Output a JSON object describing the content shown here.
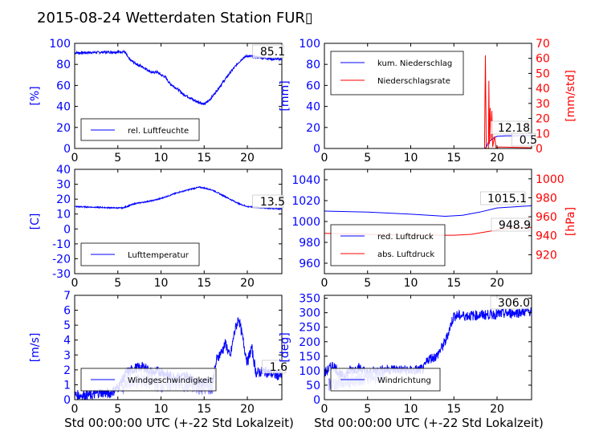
{
  "figure": {
    "title": "2015-08-24 Wetterdaten Station FUR▯",
    "xlabel": "Std 00:00:00 UTC (+-22 Std Lokalzeit)",
    "colors": {
      "left_axis": "#0000ff",
      "right_axis": "#ff0000",
      "light_blue": "#8080ff",
      "text": "#000000"
    }
  },
  "chart_data": [
    {
      "id": "humidity",
      "type": "line",
      "ylabel": "[%]",
      "xlim": [
        0,
        24
      ],
      "ylim": [
        0,
        100
      ],
      "xticks": [
        0,
        5,
        10,
        15,
        20
      ],
      "yticks": [
        0,
        20,
        40,
        60,
        80,
        100
      ],
      "last_value_label": "85.1",
      "legend": [
        "rel. Luftfeuchte"
      ],
      "series": [
        {
          "name": "rel. Luftfeuchte",
          "color": "#0000ff",
          "noise": 1.2,
          "points": [
            [
              0,
              91
            ],
            [
              3,
              91.5
            ],
            [
              5.8,
              92
            ],
            [
              6.3,
              85
            ],
            [
              7,
              81
            ],
            [
              8,
              77
            ],
            [
              9,
              72
            ],
            [
              9.5,
              73
            ],
            [
              10,
              70
            ],
            [
              10.5,
              68
            ],
            [
              11,
              62
            ],
            [
              12,
              56
            ],
            [
              12.5,
              52
            ],
            [
              13,
              50
            ],
            [
              14,
              45
            ],
            [
              14.5,
              44
            ],
            [
              15,
              42
            ],
            [
              15.5,
              45
            ],
            [
              16,
              50
            ],
            [
              17,
              61
            ],
            [
              18,
              72
            ],
            [
              19,
              82
            ],
            [
              19.5,
              86
            ],
            [
              20,
              88
            ],
            [
              21,
              87
            ],
            [
              22,
              86
            ],
            [
              23,
              85
            ],
            [
              24,
              85
            ]
          ]
        }
      ]
    },
    {
      "id": "precipitation",
      "type": "line",
      "ylabel": "[mm]",
      "ylabel_right": "[mm/std]",
      "xlim": [
        0,
        24
      ],
      "ylim": [
        0,
        100
      ],
      "ylim_right": [
        0,
        70
      ],
      "xticks": [
        0,
        5,
        10,
        15,
        20
      ],
      "yticks": [
        0,
        20,
        40,
        60,
        80,
        100
      ],
      "yticks_right": [
        0,
        10,
        20,
        30,
        40,
        50,
        60,
        70
      ],
      "last_value_labels": [
        "12.18",
        "0.5"
      ],
      "legend": [
        "kum. Niederschlag",
        "Niederschlagsrate"
      ],
      "series": [
        {
          "name": "kum. Niederschlag",
          "color": "#0000ff",
          "axis": "left",
          "points": [
            [
              0,
              0
            ],
            [
              18.6,
              0
            ],
            [
              18.8,
              2
            ],
            [
              19,
              6
            ],
            [
              19.3,
              8
            ],
            [
              19.6,
              10
            ],
            [
              20,
              11.5
            ],
            [
              21,
              12
            ],
            [
              24,
              12.18
            ]
          ]
        },
        {
          "name": "Niederschlagsrate",
          "color": "#ff0000",
          "axis": "right",
          "points": [
            [
              0,
              0
            ],
            [
              18.55,
              0
            ],
            [
              18.65,
              62
            ],
            [
              18.75,
              0
            ],
            [
              19,
              0
            ],
            [
              19.05,
              45
            ],
            [
              19.12,
              3
            ],
            [
              19.2,
              27
            ],
            [
              19.3,
              5
            ],
            [
              19.4,
              25
            ],
            [
              19.5,
              1
            ],
            [
              19.7,
              8
            ],
            [
              19.9,
              0
            ],
            [
              20.2,
              1
            ],
            [
              24,
              0.5
            ]
          ]
        }
      ]
    },
    {
      "id": "temperature",
      "type": "line",
      "ylabel": "[C]",
      "xlim": [
        0,
        24
      ],
      "ylim": [
        -30,
        40
      ],
      "xticks": [
        0,
        5,
        10,
        15,
        20
      ],
      "yticks": [
        -30,
        -20,
        -10,
        0,
        10,
        20,
        30,
        40
      ],
      "last_value_label": "13.5",
      "legend": [
        "Lufttemperatur"
      ],
      "series": [
        {
          "name": "Lufttemperatur",
          "color": "#0000ff",
          "noise": 0.4,
          "points": [
            [
              0,
              15
            ],
            [
              5.5,
              14
            ],
            [
              6,
              15
            ],
            [
              7,
              17
            ],
            [
              8,
              18
            ],
            [
              9,
              19
            ],
            [
              10,
              20.5
            ],
            [
              11,
              22.5
            ],
            [
              12,
              24.5
            ],
            [
              13,
              26
            ],
            [
              14,
              27.5
            ],
            [
              14.5,
              28
            ],
            [
              15,
              27.5
            ],
            [
              16,
              26
            ],
            [
              17,
              23
            ],
            [
              18,
              20
            ],
            [
              19,
              17
            ],
            [
              20,
              15
            ],
            [
              22,
              14
            ],
            [
              24,
              13.5
            ]
          ]
        }
      ]
    },
    {
      "id": "pressure",
      "type": "line",
      "ylim": [
        950,
        1050
      ],
      "ylim_right": [
        900,
        1010
      ],
      "ylabel_right": "[hPa]",
      "xlim": [
        0,
        24
      ],
      "xticks": [
        0,
        5,
        10,
        15,
        20
      ],
      "yticks": [
        960,
        980,
        1000,
        1020,
        1040
      ],
      "yticks_right": [
        920,
        940,
        960,
        980,
        1000
      ],
      "last_value_labels": [
        "1015.1",
        "948.9"
      ],
      "legend": [
        "red. Luftdruck",
        "abs. Luftdruck"
      ],
      "series": [
        {
          "name": "red. Luftdruck",
          "color": "#0000ff",
          "axis": "left",
          "points": [
            [
              0,
              1010
            ],
            [
              5,
              1009
            ],
            [
              10,
              1007
            ],
            [
              14,
              1005
            ],
            [
              16,
              1006
            ],
            [
              18,
              1009
            ],
            [
              20,
              1013
            ],
            [
              24,
              1015.1
            ]
          ]
        },
        {
          "name": "abs. Luftdruck",
          "color": "#ff0000",
          "axis": "right",
          "points": [
            [
              0,
              942.5
            ],
            [
              5,
              941.5
            ],
            [
              10,
              940.5
            ],
            [
              15,
              940.5
            ],
            [
              17,
              941.5
            ],
            [
              19,
              944.5
            ],
            [
              21,
              947.5
            ],
            [
              24,
              948.9
            ]
          ]
        }
      ]
    },
    {
      "id": "windspeed",
      "type": "line",
      "ylabel": "[m/s]",
      "xlim": [
        0,
        24
      ],
      "ylim": [
        0,
        7
      ],
      "xticks": [
        0,
        5,
        10,
        15,
        20
      ],
      "yticks": [
        0,
        1,
        2,
        3,
        4,
        5,
        6,
        7
      ],
      "last_value_label": "1.6",
      "legend": [
        "Windgeschwindigkeit"
      ],
      "series": [
        {
          "name": "Windgeschwindigkeit",
          "color": "#0000ff",
          "noise": 0.35,
          "points": [
            [
              0,
              0.3
            ],
            [
              2,
              0.3
            ],
            [
              3,
              0.5
            ],
            [
              4,
              0.4
            ],
            [
              5,
              0.8
            ],
            [
              6,
              1.8
            ],
            [
              7,
              2.1
            ],
            [
              8,
              2.2
            ],
            [
              9,
              1.8
            ],
            [
              10,
              1.9
            ],
            [
              11,
              1.6
            ],
            [
              12,
              1.5
            ],
            [
              13,
              1.6
            ],
            [
              14,
              1.2
            ],
            [
              15,
              1.1
            ],
            [
              16,
              1.3
            ],
            [
              16.5,
              2.8
            ],
            [
              17,
              3.2
            ],
            [
              17.5,
              3.8
            ],
            [
              18,
              2.8
            ],
            [
              18.5,
              4.5
            ],
            [
              19,
              5.5
            ],
            [
              19.5,
              4.0
            ],
            [
              20,
              2.5
            ],
            [
              20.5,
              3.5
            ],
            [
              21,
              1.8
            ],
            [
              22,
              1.9
            ],
            [
              23,
              1.7
            ],
            [
              24,
              1.6
            ]
          ]
        },
        {
          "name": "",
          "color": "#8080ff",
          "noise": 0.55,
          "points": [
            [
              5.5,
              0.5
            ],
            [
              6,
              1.2
            ],
            [
              8,
              1.3
            ],
            [
              10,
              1.0
            ],
            [
              12,
              1.1
            ],
            [
              14,
              0.9
            ],
            [
              16,
              0.8
            ]
          ]
        }
      ]
    },
    {
      "id": "winddirection",
      "type": "line",
      "ylabel": "[deg]",
      "xlim": [
        0,
        24
      ],
      "ylim": [
        0,
        360
      ],
      "xticks": [
        0,
        5,
        10,
        15,
        20
      ],
      "yticks": [
        0,
        50,
        100,
        150,
        200,
        250,
        300,
        350
      ],
      "last_value_label": "306.0",
      "legend": [
        "Windrichtung"
      ],
      "series": [
        {
          "name": "Windrichtung",
          "color": "#0000ff",
          "noise": 18,
          "points": [
            [
              0,
              90
            ],
            [
              1,
              120
            ],
            [
              2,
              80
            ],
            [
              3,
              100
            ],
            [
              4,
              110
            ],
            [
              5,
              90
            ],
            [
              6,
              100
            ],
            [
              8,
              105
            ],
            [
              10,
              100
            ],
            [
              11.5,
              105
            ],
            [
              12,
              140
            ],
            [
              13,
              150
            ],
            [
              14,
              200
            ],
            [
              15,
              290
            ],
            [
              17,
              290
            ],
            [
              20,
              295
            ],
            [
              22,
              300
            ],
            [
              24,
              306
            ]
          ]
        },
        {
          "name": "",
          "color": "#8080ff",
          "noise": 25,
          "points": [
            [
              0.5,
              50
            ],
            [
              2,
              60
            ],
            [
              4,
              70
            ],
            [
              6,
              80
            ],
            [
              7,
              80
            ]
          ]
        }
      ]
    }
  ]
}
